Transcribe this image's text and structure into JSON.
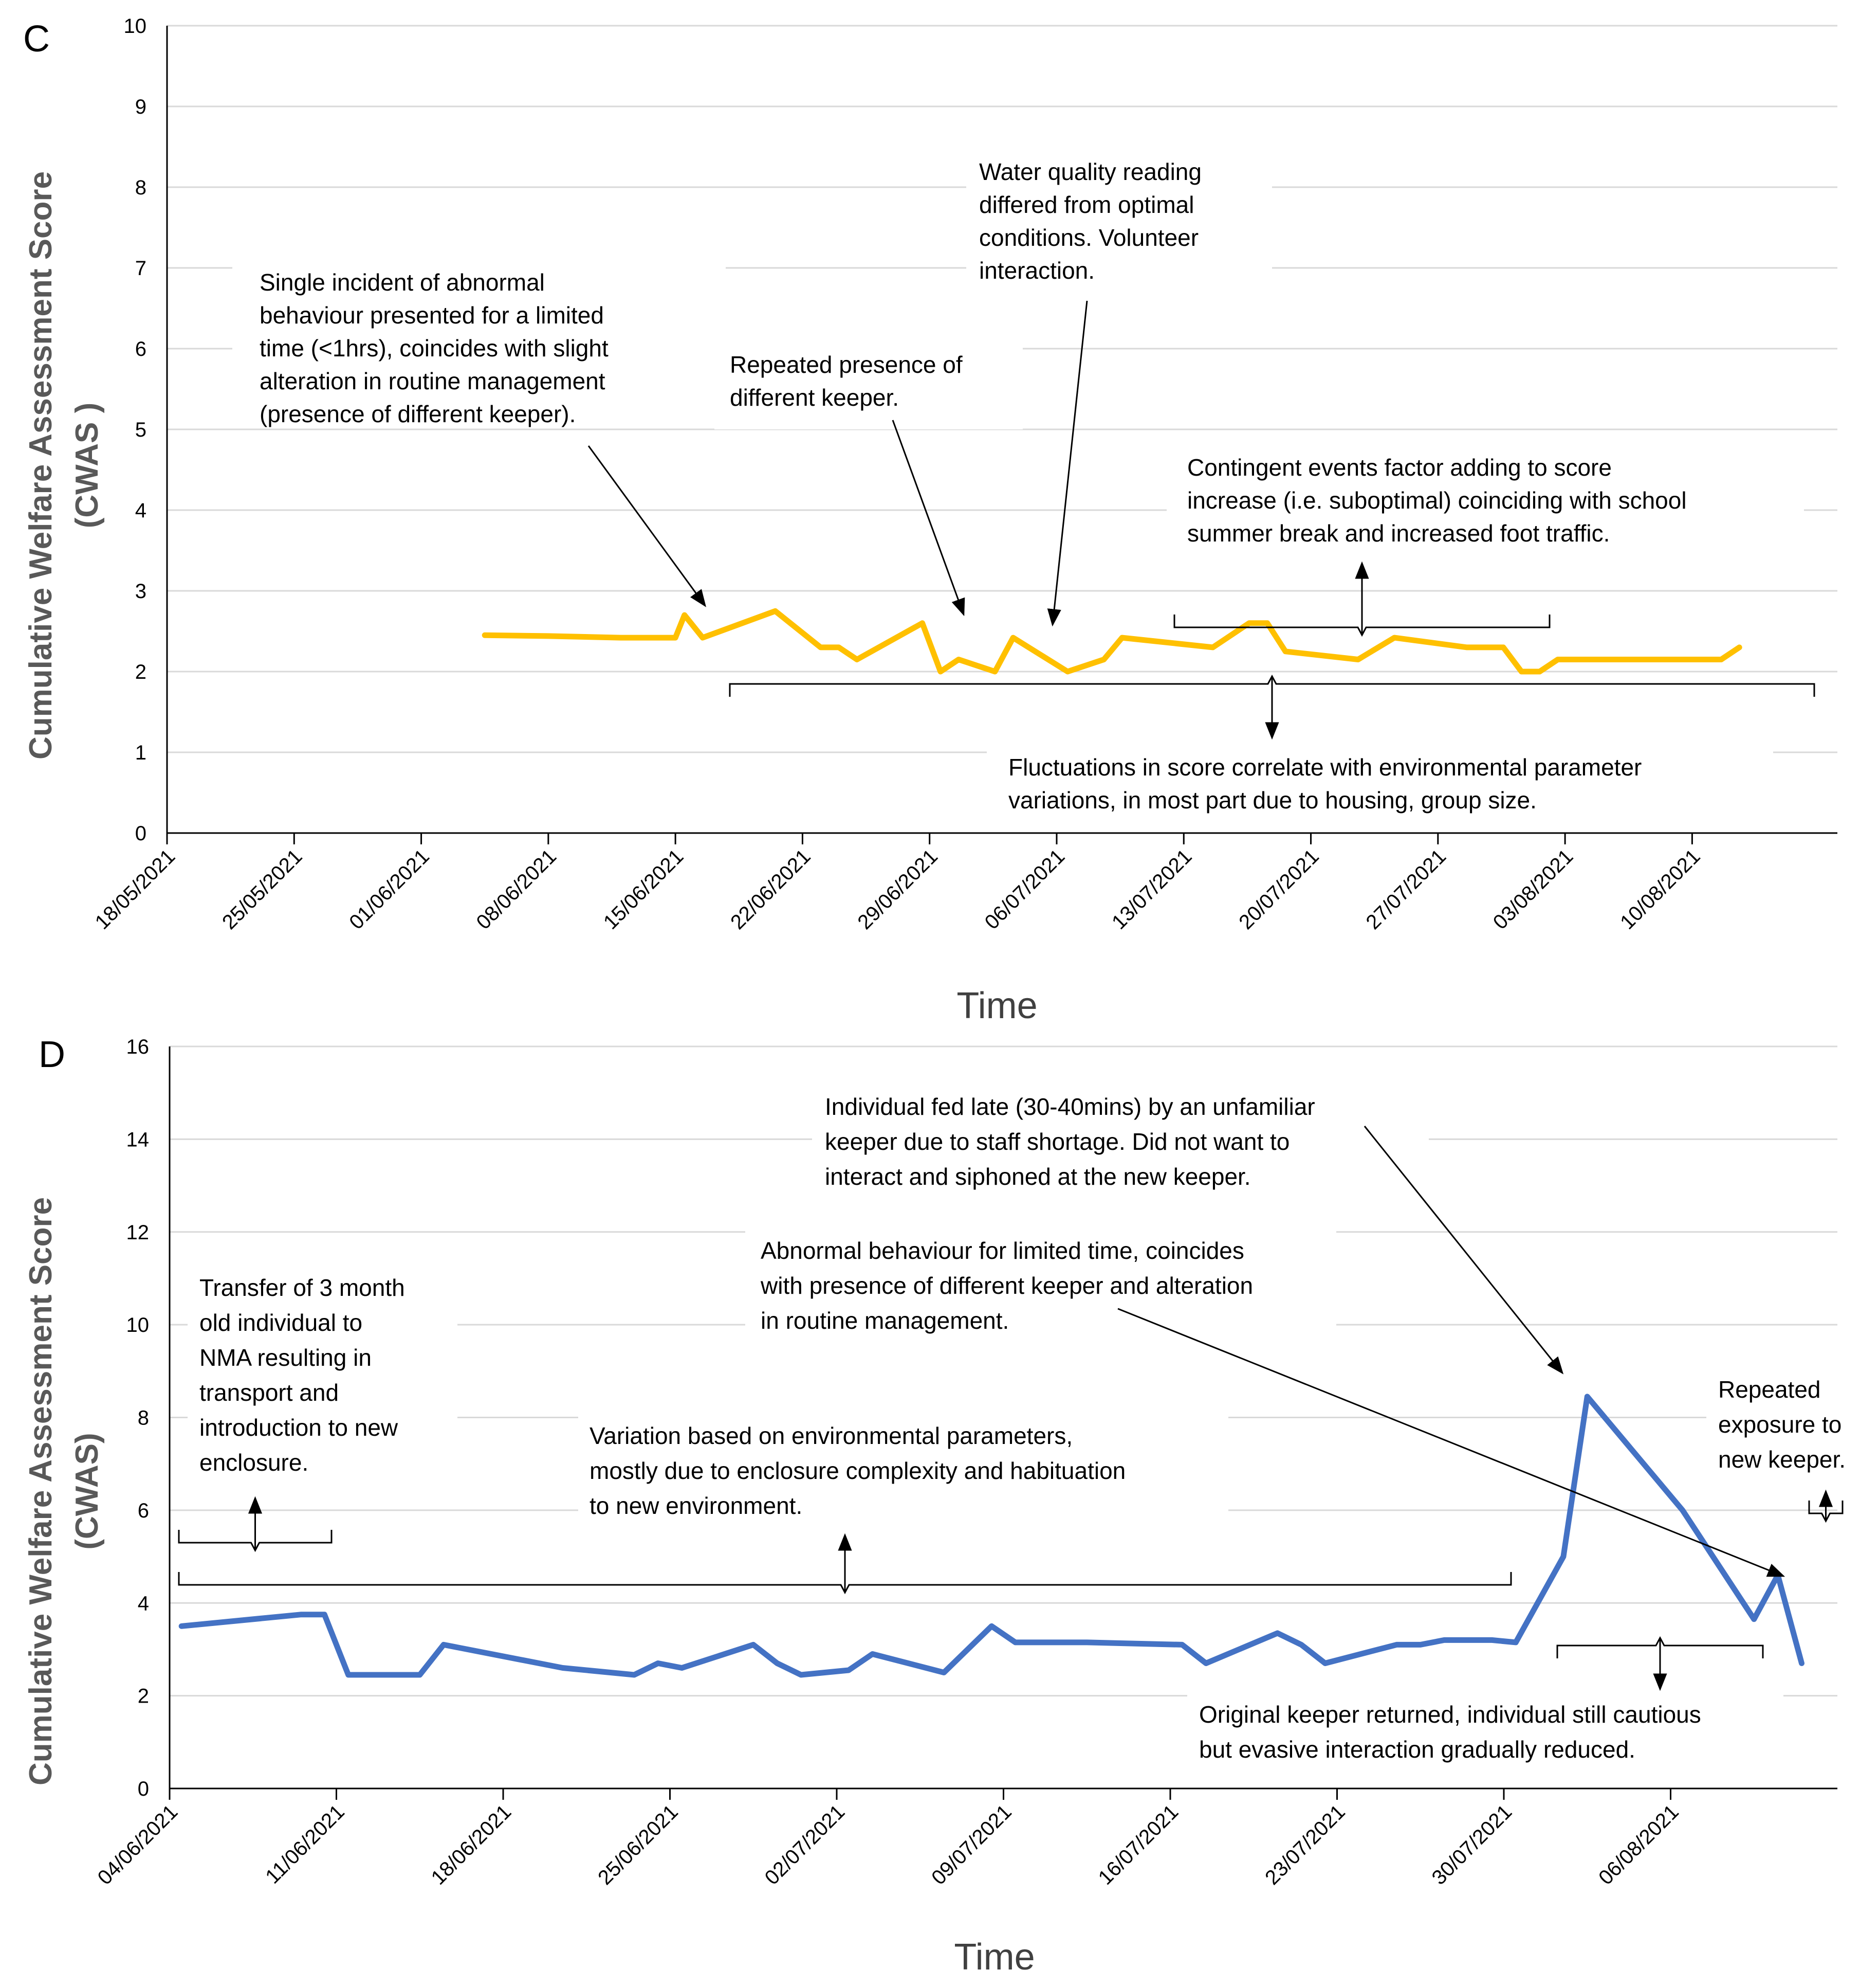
{
  "chart_data": [
    {
      "type": "line",
      "panel_label": "C",
      "title": "",
      "xlabel": "Time",
      "ylabel_line1": "Cumulative Welfare Assessment Score",
      "ylabel_line2": "(CWAS )",
      "ylim": [
        0,
        10
      ],
      "yticks": [
        "0",
        "1",
        "2",
        "3",
        "4",
        "5",
        "6",
        "7",
        "8",
        "9",
        "10"
      ],
      "xlim_days": [
        0,
        92
      ],
      "xticks": [
        {
          "label": "18/05/2021",
          "day": 0
        },
        {
          "label": "25/05/2021",
          "day": 7
        },
        {
          "label": "01/06/2021",
          "day": 14
        },
        {
          "label": "08/06/2021",
          "day": 21
        },
        {
          "label": "15/06/2021",
          "day": 28
        },
        {
          "label": "22/06/2021",
          "day": 35
        },
        {
          "label": "29/06/2021",
          "day": 42
        },
        {
          "label": "06/07/2021",
          "day": 49
        },
        {
          "label": "13/07/2021",
          "day": 56
        },
        {
          "label": "20/07/2021",
          "day": 63
        },
        {
          "label": "27/07/2021",
          "day": 70
        },
        {
          "label": "03/08/2021",
          "day": 77
        },
        {
          "label": "10/08/2021",
          "day": 84
        }
      ],
      "series": [
        {
          "name": "CWAS",
          "color": "#FFC000",
          "points": [
            [
              17.5,
              2.45
            ],
            [
              21,
              2.44
            ],
            [
              25,
              2.42
            ],
            [
              28,
              2.42
            ],
            [
              28.5,
              2.7
            ],
            [
              29.5,
              2.42
            ],
            [
              33.5,
              2.75
            ],
            [
              36,
              2.3
            ],
            [
              37,
              2.3
            ],
            [
              38,
              2.15
            ],
            [
              41.6,
              2.6
            ],
            [
              42.6,
              2.0
            ],
            [
              43.6,
              2.15
            ],
            [
              45.6,
              2.0
            ],
            [
              46.6,
              2.42
            ],
            [
              49.6,
              2.0
            ],
            [
              51.6,
              2.15
            ],
            [
              52.6,
              2.42
            ],
            [
              57.6,
              2.3
            ],
            [
              59.6,
              2.6
            ],
            [
              60.6,
              2.6
            ],
            [
              61.6,
              2.25
            ],
            [
              65.6,
              2.15
            ],
            [
              67.6,
              2.42
            ],
            [
              71.6,
              2.3
            ],
            [
              73.6,
              2.3
            ],
            [
              74.6,
              2.0
            ],
            [
              75.6,
              2.0
            ],
            [
              76.6,
              2.15
            ],
            [
              83.6,
              2.15
            ],
            [
              85.6,
              2.15
            ],
            [
              86.6,
              2.3
            ]
          ]
        }
      ],
      "annotations": [
        {
          "id": "c1",
          "lines": [
            "Single incident of abnormal",
            "behaviour presented for a limited",
            "time (<1hrs), coincides with slight",
            "alteration in routine management",
            "(presence of different keeper)."
          ]
        },
        {
          "id": "c2",
          "lines": [
            "Repeated presence of",
            "different keeper."
          ]
        },
        {
          "id": "c3",
          "lines": [
            "Water quality reading",
            "differed from optimal",
            "conditions. Volunteer",
            "interaction."
          ]
        },
        {
          "id": "c4",
          "lines": [
            "Contingent events factor adding to score",
            "increase (i.e. suboptimal) coinciding with school",
            "summer break and increased foot traffic."
          ]
        },
        {
          "id": "c5",
          "lines": [
            "Fluctuations in score correlate with environmental parameter",
            "variations, in most part due to housing, group size."
          ]
        }
      ]
    },
    {
      "type": "line",
      "panel_label": "D",
      "title": "",
      "xlabel": "Time",
      "ylabel_line1": "Cumulative Welfare Assessment Score",
      "ylabel_line2": "(CWAS)",
      "ylim": [
        0,
        16
      ],
      "yticks": [
        "0",
        "2",
        "4",
        "6",
        "8",
        "10",
        "12",
        "14",
        "16"
      ],
      "xlim_days": [
        0,
        70
      ],
      "xticks": [
        {
          "label": "04/06/2021",
          "day": 0
        },
        {
          "label": "11/06/2021",
          "day": 7
        },
        {
          "label": "18/06/2021",
          "day": 14
        },
        {
          "label": "25/06/2021",
          "day": 21
        },
        {
          "label": "02/07/2021",
          "day": 28
        },
        {
          "label": "09/07/2021",
          "day": 35
        },
        {
          "label": "16/07/2021",
          "day": 42
        },
        {
          "label": "23/07/2021",
          "day": 49
        },
        {
          "label": "30/07/2021",
          "day": 56
        },
        {
          "label": "06/08/2021",
          "day": 63
        }
      ],
      "series": [
        {
          "name": "CWAS",
          "color": "#4472C4",
          "points": [
            [
              0.5,
              3.5
            ],
            [
              5.5,
              3.75
            ],
            [
              6.5,
              3.75
            ],
            [
              7.5,
              2.45
            ],
            [
              10.5,
              2.45
            ],
            [
              11.5,
              3.1
            ],
            [
              16.5,
              2.6
            ],
            [
              19.5,
              2.45
            ],
            [
              20.5,
              2.7
            ],
            [
              21.5,
              2.6
            ],
            [
              24.5,
              3.1
            ],
            [
              25.5,
              2.7
            ],
            [
              26.5,
              2.45
            ],
            [
              28.5,
              2.55
            ],
            [
              29.5,
              2.9
            ],
            [
              32.5,
              2.5
            ],
            [
              34.5,
              3.5
            ],
            [
              35.5,
              3.15
            ],
            [
              38.5,
              3.15
            ],
            [
              42.5,
              3.1
            ],
            [
              43.5,
              2.7
            ],
            [
              46.5,
              3.35
            ],
            [
              47.5,
              3.1
            ],
            [
              48.5,
              2.7
            ],
            [
              51.5,
              3.1
            ],
            [
              52.5,
              3.1
            ],
            [
              53.5,
              3.2
            ],
            [
              55.5,
              3.2
            ],
            [
              56.5,
              3.15
            ],
            [
              58.5,
              5.0
            ],
            [
              59.5,
              8.45
            ],
            [
              63.5,
              6.0
            ],
            [
              66.5,
              3.65
            ],
            [
              67.5,
              4.6
            ],
            [
              68.5,
              2.7
            ]
          ]
        }
      ],
      "annotations": [
        {
          "id": "d1",
          "lines": [
            "Transfer of 3 month",
            "old individual to",
            "NMA resulting in",
            "transport and",
            "introduction to new",
            "enclosure."
          ]
        },
        {
          "id": "d2",
          "lines": [
            "Variation based on environmental parameters,",
            "mostly due to enclosure complexity and habituation",
            "to new environment."
          ]
        },
        {
          "id": "d3",
          "lines": [
            "Abnormal behaviour for limited time, coincides",
            "with presence of different keeper and alteration",
            "in routine management."
          ]
        },
        {
          "id": "d4",
          "lines": [
            "Individual fed late (30-40mins) by an unfamiliar",
            "keeper due to staff shortage. Did not want to",
            "interact and siphoned at the new keeper."
          ]
        },
        {
          "id": "d5",
          "lines": [
            "Repeated",
            "exposure to",
            "new keeper."
          ]
        },
        {
          "id": "d6",
          "lines": [
            "Original keeper returned, individual still cautious",
            "but evasive interaction gradually reduced."
          ]
        }
      ]
    }
  ]
}
